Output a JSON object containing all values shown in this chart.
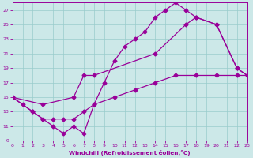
{
  "background_color": "#cce8e8",
  "grid_color": "#99cccc",
  "line_color": "#990099",
  "xlim": [
    0,
    23
  ],
  "ylim": [
    9,
    28
  ],
  "yticks": [
    9,
    11,
    13,
    15,
    17,
    19,
    21,
    23,
    25,
    27
  ],
  "xticks": [
    0,
    1,
    2,
    3,
    4,
    5,
    6,
    7,
    8,
    9,
    10,
    11,
    12,
    13,
    14,
    15,
    16,
    17,
    18,
    19,
    20,
    21,
    22,
    23
  ],
  "xlabel": "Windchill (Refroidissement éolien,°C)",
  "line1_upper": {
    "x": [
      0,
      1,
      2,
      3,
      4,
      5,
      6,
      7,
      8,
      9,
      10,
      11,
      12,
      13,
      14,
      15,
      16,
      17,
      18,
      20,
      22,
      23
    ],
    "y": [
      15,
      14,
      13,
      12,
      11,
      10,
      11,
      10,
      14,
      17,
      20,
      22,
      23,
      24,
      26,
      27,
      28,
      27,
      26,
      25,
      19,
      18
    ]
  },
  "line2_middle": {
    "x": [
      0,
      3,
      6,
      7,
      8,
      14,
      17,
      18,
      20,
      22,
      23
    ],
    "y": [
      15,
      14,
      15,
      18,
      18,
      21,
      25,
      26,
      25,
      19,
      18
    ]
  },
  "line3_lower": {
    "x": [
      0,
      2,
      3,
      4,
      5,
      6,
      7,
      8,
      10,
      12,
      14,
      16,
      18,
      20,
      22,
      23
    ],
    "y": [
      15,
      13,
      12,
      12,
      12,
      12,
      13,
      14,
      15,
      16,
      17,
      18,
      18,
      18,
      18,
      18
    ]
  }
}
